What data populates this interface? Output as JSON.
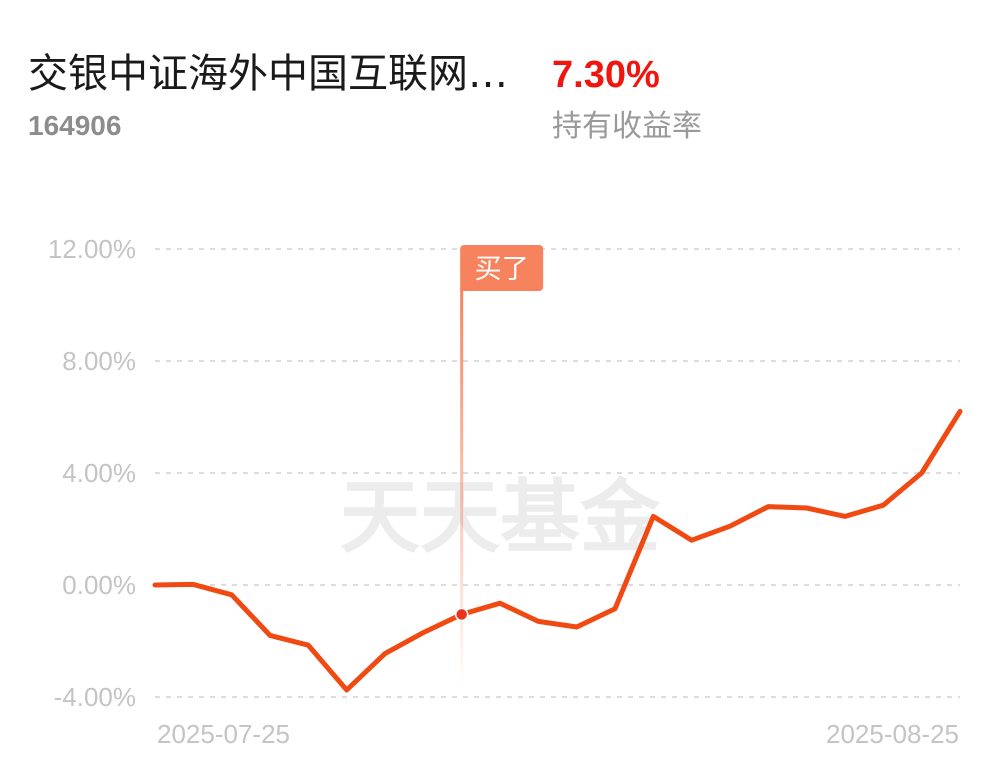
{
  "header": {
    "fund_name": "交银中证海外中国互联网…",
    "fund_code": "164906",
    "return_value": "7.30%",
    "return_label": "持有收益率"
  },
  "watermark": "天天基金",
  "marker": {
    "label": "买了",
    "index": 8
  },
  "colors": {
    "line": "#f04a12",
    "return": "#f0150f",
    "flag": "#f7835e"
  },
  "chart_data": {
    "type": "line",
    "title": "",
    "xlabel": "",
    "ylabel": "",
    "ylim": [
      -4,
      12
    ],
    "yticks": [
      "12.00%",
      "8.00%",
      "4.00%",
      "0.00%",
      "-4.00%"
    ],
    "ytick_values": [
      12,
      8,
      4,
      0,
      -4
    ],
    "x_tick_labels": [
      "2025-07-25",
      "2025-08-25"
    ],
    "grid": true,
    "series": [
      {
        "values": [
          0.0,
          0.02,
          -0.35,
          -1.8,
          -2.15,
          -3.75,
          -2.45,
          -1.7,
          -1.05,
          -0.65,
          -1.3,
          -1.5,
          -0.85,
          2.45,
          1.6,
          2.1,
          2.8,
          2.75,
          2.45,
          2.85,
          4.0,
          6.2
        ]
      }
    ]
  }
}
